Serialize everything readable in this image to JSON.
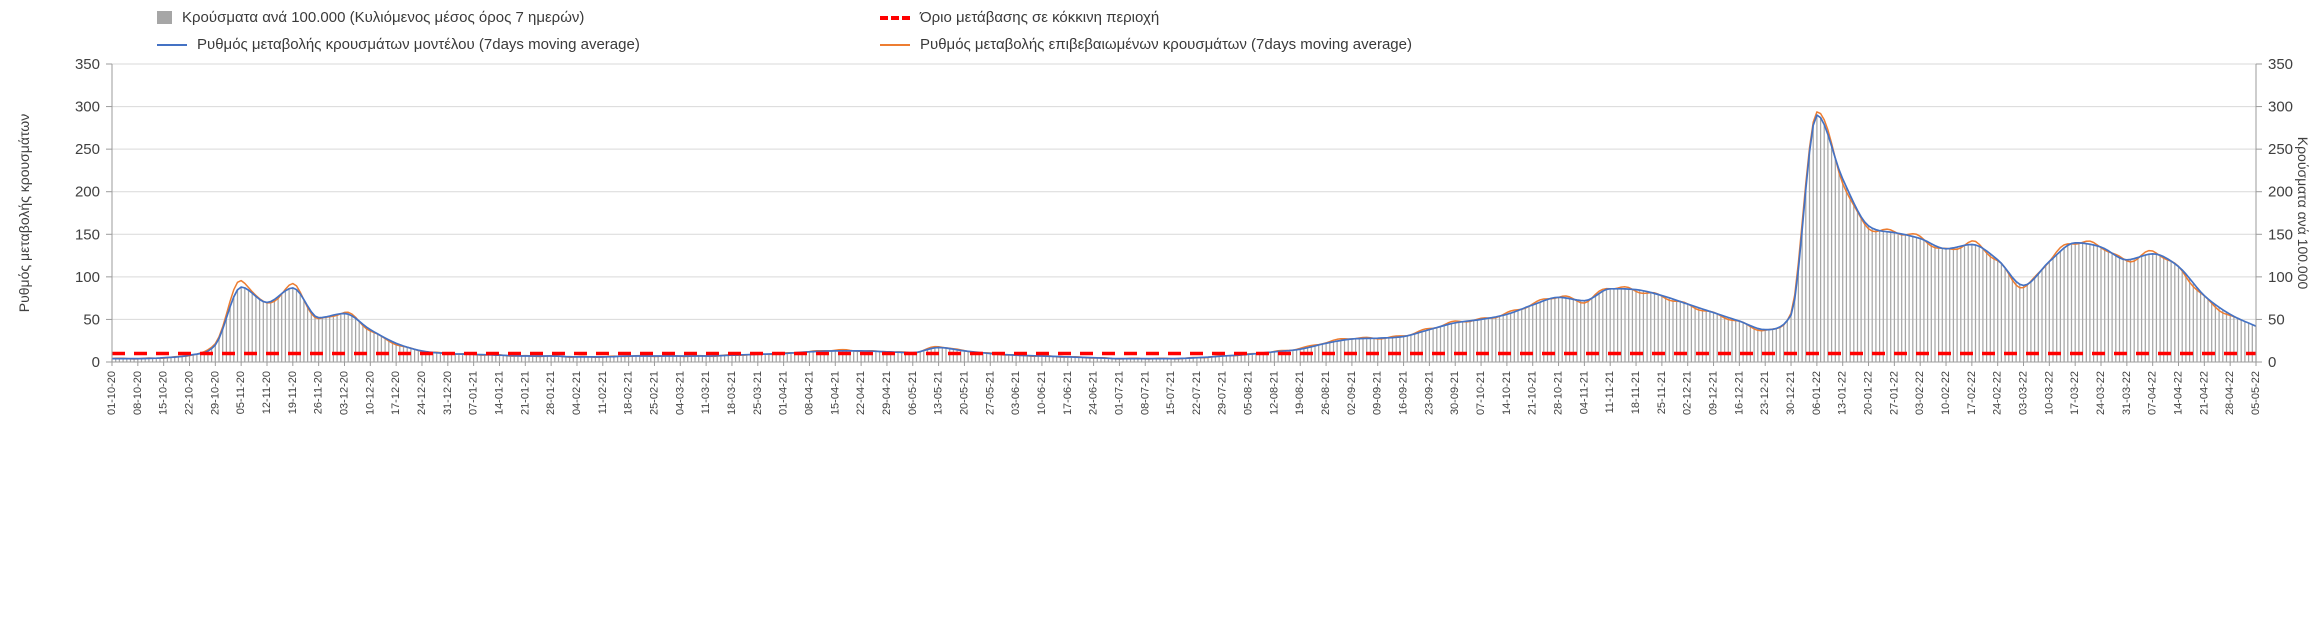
{
  "legend": {
    "bars_label": "Κρούσματα ανά 100.000 (Κυλιόμενος μέσος όρος 7 ημερών)",
    "threshold_label": "Όριο μετάβασης σε κόκκινη περιοχή",
    "model_label": "Ρυθμός μεταβολής κρουσμάτων μοντέλου (7days moving average)",
    "confirmed_label": "Ρυθμός μεταβολής επιβεβαιωμένων κρουσμάτων (7days moving average)"
  },
  "axes": {
    "left_title": "Ρυθμός μεταβολής κρουσμάτων",
    "right_title": "Κρούσματα ανά 100.000"
  },
  "colors": {
    "bars": "#a6a6a6",
    "model": "#4472c4",
    "confirmed": "#ed7d31",
    "threshold": "#ff0000",
    "grid": "#d9d9d9",
    "axis": "#9b9b9b",
    "text": "#404040"
  },
  "chart_data": {
    "type": "combo bar + line",
    "title": "",
    "xlabel": "",
    "ylabel_left": "Ρυθμός μεταβολής κρουσμάτων",
    "ylabel_right": "Κρούσματα ανά 100.000",
    "ylim": [
      0,
      350
    ],
    "y_ticks": [
      0,
      50,
      100,
      150,
      200,
      250,
      300,
      350
    ],
    "grid": "horizontal",
    "legend_position": "top",
    "x": [
      "01-10-20",
      "08-10-20",
      "15-10-20",
      "22-10-20",
      "29-10-20",
      "05-11-20",
      "12-11-20",
      "19-11-20",
      "26-11-20",
      "03-12-20",
      "10-12-20",
      "17-12-20",
      "24-12-20",
      "31-12-20",
      "07-01-21",
      "14-01-21",
      "21-01-21",
      "28-01-21",
      "04-02-21",
      "11-02-21",
      "18-02-21",
      "25-02-21",
      "04-03-21",
      "11-03-21",
      "18-03-21",
      "25-03-21",
      "01-04-21",
      "08-04-21",
      "15-04-21",
      "22-04-21",
      "29-04-21",
      "06-05-21",
      "13-05-21",
      "20-05-21",
      "27-05-21",
      "03-06-21",
      "10-06-21",
      "17-06-21",
      "24-06-21",
      "01-07-21",
      "08-07-21",
      "15-07-21",
      "22-07-21",
      "29-07-21",
      "05-08-21",
      "12-08-21",
      "19-08-21",
      "26-08-21",
      "02-09-21",
      "09-09-21",
      "16-09-21",
      "23-09-21",
      "30-09-21",
      "07-10-21",
      "14-10-21",
      "21-10-21",
      "28-10-21",
      "04-11-21",
      "11-11-21",
      "18-11-21",
      "25-11-21",
      "02-12-21",
      "09-12-21",
      "16-12-21",
      "23-12-21",
      "30-12-21",
      "06-01-22",
      "13-01-22",
      "20-01-22",
      "27-01-22",
      "03-02-22",
      "10-02-22",
      "17-02-22",
      "24-02-22",
      "03-03-22",
      "10-03-22",
      "17-03-22",
      "24-03-22",
      "31-03-22",
      "07-04-22",
      "14-04-22",
      "21-04-22",
      "28-04-22",
      "05-05-22"
    ],
    "series": [
      {
        "name": "Κρούσματα ανά 100.000 (Κυλιόμενος μέσος όρος 7 ημερών)",
        "type": "bar",
        "axis": "right",
        "values": [
          4,
          4,
          5,
          8,
          20,
          88,
          70,
          87,
          52,
          57,
          38,
          22,
          13,
          10,
          9,
          8,
          7,
          7,
          6,
          6,
          7,
          7,
          7,
          7,
          8,
          9,
          10,
          12,
          13,
          13,
          12,
          11,
          17,
          13,
          10,
          8,
          7,
          6,
          5,
          4,
          4,
          4,
          5,
          7,
          9,
          12,
          15,
          22,
          27,
          28,
          30,
          38,
          46,
          50,
          56,
          67,
          76,
          72,
          86,
          85,
          78,
          68,
          58,
          48,
          38,
          55,
          290,
          215,
          160,
          152,
          145,
          133,
          138,
          120,
          90,
          118,
          140,
          135,
          120,
          127,
          112,
          78,
          56,
          42
        ]
      },
      {
        "name": "Ρυθμός μεταβολής κρουσμάτων μοντέλου (7days moving average)",
        "type": "line",
        "color_key": "model",
        "axis": "left",
        "values": [
          4,
          4,
          5,
          8,
          20,
          88,
          70,
          87,
          52,
          57,
          38,
          22,
          13,
          10,
          9,
          8,
          7,
          7,
          6,
          6,
          7,
          7,
          7,
          7,
          8,
          9,
          10,
          12,
          13,
          13,
          12,
          11,
          17,
          13,
          10,
          8,
          7,
          6,
          5,
          4,
          4,
          4,
          5,
          7,
          9,
          12,
          15,
          22,
          27,
          28,
          30,
          38,
          46,
          50,
          56,
          67,
          76,
          72,
          86,
          85,
          78,
          68,
          58,
          48,
          38,
          55,
          290,
          215,
          160,
          152,
          145,
          133,
          138,
          120,
          90,
          118,
          140,
          135,
          120,
          127,
          112,
          78,
          56,
          42
        ]
      },
      {
        "name": "Ρυθμός μεταβολής επιβεβαιωμένων κρουσμάτων (7days moving average)",
        "type": "line",
        "color_key": "confirmed",
        "axis": "left",
        "values": [
          4,
          4,
          5,
          8,
          22,
          95,
          68,
          90,
          50,
          58,
          37,
          21,
          13,
          10,
          9,
          8,
          7,
          7,
          6,
          6,
          7,
          7,
          7,
          7,
          8,
          9,
          10,
          12,
          14,
          13,
          12,
          11,
          18,
          13,
          10,
          8,
          7,
          6,
          5,
          4,
          4,
          4,
          5,
          7,
          9,
          12,
          16,
          23,
          28,
          28,
          31,
          39,
          47,
          50,
          57,
          68,
          77,
          71,
          88,
          84,
          77,
          67,
          57,
          47,
          37,
          58,
          296,
          212,
          158,
          153,
          146,
          131,
          140,
          118,
          88,
          120,
          141,
          136,
          119,
          129,
          110,
          76,
          54,
          44
        ]
      },
      {
        "name": "Όριο μετάβασης σε κόκκινη περιοχή",
        "type": "threshold-line",
        "value": 10
      }
    ]
  }
}
